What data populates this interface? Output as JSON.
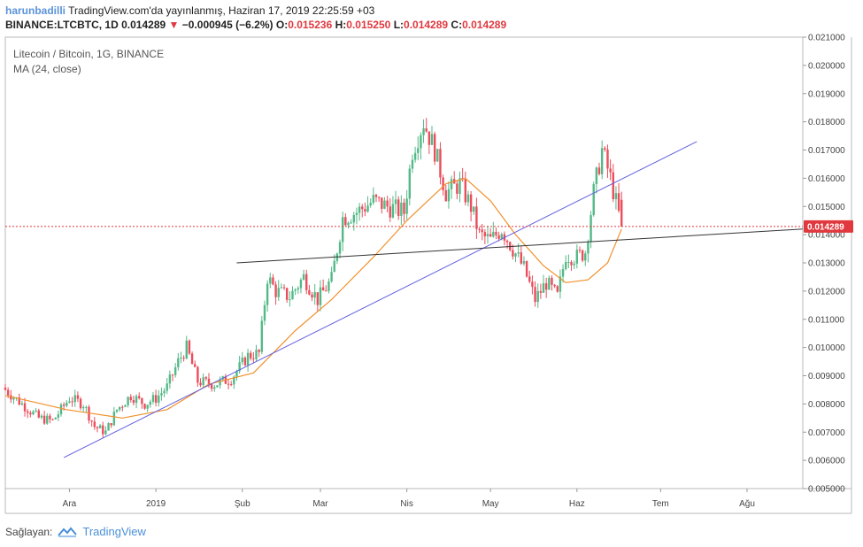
{
  "header": {
    "user": "harunbadilli",
    "published": "TradingView.com'da yayınlanmış, Haziran 17, 2019 22:25:59 +03",
    "symbol_line": "BINANCE:LTCBTC, 1D",
    "last": "0.014289",
    "change_arrow": "▼",
    "change": "−0.000945 (−6.2%)",
    "o_label": "O:",
    "o": "0.015236",
    "h_label": "H:",
    "h": "0.015250",
    "l_label": "L:",
    "l": "0.014289",
    "c_label": "C:",
    "c": "0.014289"
  },
  "legend": {
    "title": "Litecoin / Bitcoin, 1G, BINANCE",
    "ma": "MA (24, close)"
  },
  "footer": {
    "provider_label": "Sağlayan:",
    "brand": "TradingView",
    "icon": "tradingview-logo-icon"
  },
  "colors": {
    "up": "#53b987",
    "down": "#eb4d5c",
    "ma": "#f0912d",
    "trend_blue": "#6461e0",
    "trend_black": "#333333",
    "price_line": "#e0383e"
  },
  "chart_data": {
    "type": "candlestick",
    "title": "Litecoin / Bitcoin, 1G, BINANCE",
    "ylim": [
      0.005,
      0.021
    ],
    "y_ticks": [
      "0.021000",
      "0.020000",
      "0.019000",
      "0.018000",
      "0.017000",
      "0.016000",
      "0.015000",
      "0.014000",
      "0.013000",
      "0.012000",
      "0.011000",
      "0.010000",
      "0.009000",
      "0.008000",
      "0.007000",
      "0.006000",
      "0.005000"
    ],
    "x_range": [
      "2018-11-08",
      "2019-08-21"
    ],
    "x_ticks": [
      {
        "label": "Ara",
        "date": "2018-12-01"
      },
      {
        "label": "2019",
        "date": "2019-01-01"
      },
      {
        "label": "Şub",
        "date": "2019-02-01"
      },
      {
        "label": "Mar",
        "date": "2019-03-01"
      },
      {
        "label": "Nis",
        "date": "2019-04-01"
      },
      {
        "label": "May",
        "date": "2019-05-01"
      },
      {
        "label": "Haz",
        "date": "2019-06-01"
      },
      {
        "label": "Tem",
        "date": "2019-07-01"
      },
      {
        "label": "Ağu",
        "date": "2019-08-01"
      }
    ],
    "close_anchors": [
      [
        "2018-11-08",
        0.0085
      ],
      [
        "2018-11-14",
        0.008
      ],
      [
        "2018-11-20",
        0.0075
      ],
      [
        "2018-11-25",
        0.0074
      ],
      [
        "2018-12-01",
        0.0082
      ],
      [
        "2018-12-06",
        0.008
      ],
      [
        "2018-12-10",
        0.0072
      ],
      [
        "2018-12-14",
        0.007
      ],
      [
        "2018-12-18",
        0.0078
      ],
      [
        "2018-12-23",
        0.0083
      ],
      [
        "2018-12-28",
        0.008
      ],
      [
        "2019-01-01",
        0.0082
      ],
      [
        "2019-01-05",
        0.0086
      ],
      [
        "2019-01-09",
        0.0095
      ],
      [
        "2019-01-12",
        0.01
      ],
      [
        "2019-01-16",
        0.0088
      ],
      [
        "2019-01-22",
        0.0087
      ],
      [
        "2019-01-28",
        0.0089
      ],
      [
        "2019-02-03",
        0.0097
      ],
      [
        "2019-02-07",
        0.0098
      ],
      [
        "2019-02-10",
        0.0125
      ],
      [
        "2019-02-13",
        0.012
      ],
      [
        "2019-02-18",
        0.0118
      ],
      [
        "2019-02-23",
        0.0125
      ],
      [
        "2019-02-28",
        0.0117
      ],
      [
        "2019-03-05",
        0.0124
      ],
      [
        "2019-03-09",
        0.0146
      ],
      [
        "2019-03-14",
        0.0148
      ],
      [
        "2019-03-20",
        0.0152
      ],
      [
        "2019-03-25",
        0.015
      ],
      [
        "2019-03-31",
        0.0148
      ],
      [
        "2019-04-03",
        0.017
      ],
      [
        "2019-04-07",
        0.018
      ],
      [
        "2019-04-11",
        0.017
      ],
      [
        "2019-04-15",
        0.0155
      ],
      [
        "2019-04-20",
        0.0158
      ],
      [
        "2019-04-24",
        0.015
      ],
      [
        "2019-04-27",
        0.014
      ],
      [
        "2019-05-01",
        0.0138
      ],
      [
        "2019-05-05",
        0.0142
      ],
      [
        "2019-05-09",
        0.0135
      ],
      [
        "2019-05-13",
        0.0128
      ],
      [
        "2019-05-17",
        0.0117
      ],
      [
        "2019-05-21",
        0.0123
      ],
      [
        "2019-05-25",
        0.0118
      ],
      [
        "2019-05-28",
        0.0133
      ],
      [
        "2019-06-01",
        0.0132
      ],
      [
        "2019-06-04",
        0.0134
      ],
      [
        "2019-06-07",
        0.0155
      ],
      [
        "2019-06-10",
        0.017
      ],
      [
        "2019-06-13",
        0.016
      ],
      [
        "2019-06-17",
        0.014289
      ]
    ],
    "series": [
      {
        "name": "MA (24, close)",
        "values": [
          [
            "2018-11-08",
            0.0083
          ],
          [
            "2018-11-30",
            0.0078
          ],
          [
            "2018-12-20",
            0.0075
          ],
          [
            "2019-01-05",
            0.0078
          ],
          [
            "2019-01-20",
            0.0087
          ],
          [
            "2019-02-05",
            0.0091
          ],
          [
            "2019-02-20",
            0.0106
          ],
          [
            "2019-03-05",
            0.0117
          ],
          [
            "2019-03-20",
            0.0132
          ],
          [
            "2019-04-01",
            0.0145
          ],
          [
            "2019-04-15",
            0.0158
          ],
          [
            "2019-04-22",
            0.016
          ],
          [
            "2019-05-01",
            0.0152
          ],
          [
            "2019-05-10",
            0.014
          ],
          [
            "2019-05-20",
            0.0129
          ],
          [
            "2019-05-28",
            0.0123
          ],
          [
            "2019-06-05",
            0.0124
          ],
          [
            "2019-06-12",
            0.013
          ],
          [
            "2019-06-17",
            0.0142
          ]
        ]
      }
    ],
    "trendlines": [
      {
        "color": "blue",
        "from": [
          "2018-11-29",
          0.0061
        ],
        "to": [
          "2019-07-14",
          0.0173
        ]
      },
      {
        "color": "black",
        "from": [
          "2019-01-30",
          0.013
        ],
        "to": [
          "2019-08-21",
          0.0142
        ]
      }
    ],
    "last_price": {
      "value": 0.014289,
      "label": "0.014289"
    }
  }
}
